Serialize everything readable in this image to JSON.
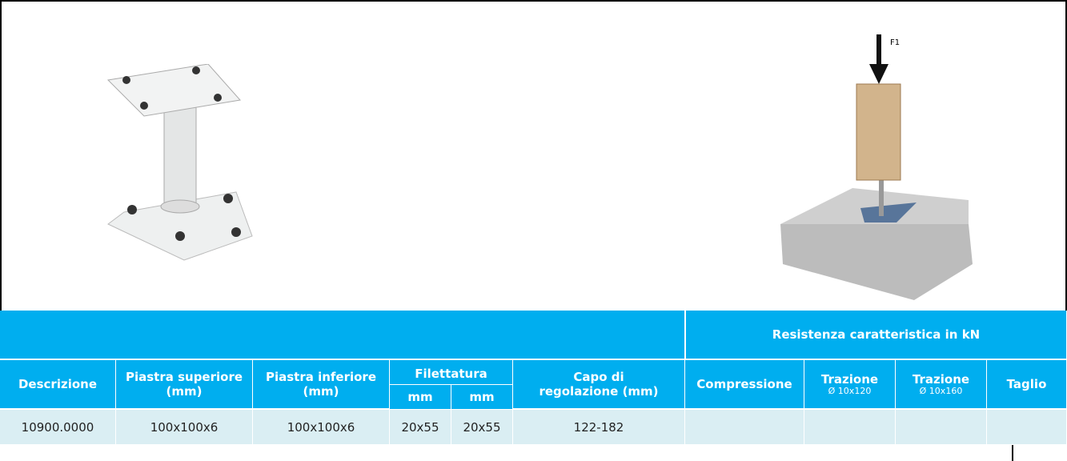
{
  "figure": {
    "force_label": "F1"
  },
  "table": {
    "group_header": "Resistenza caratteristica in kN",
    "columns": [
      {
        "lines": [
          "Descrizione"
        ]
      },
      {
        "lines": [
          "Piastra superiore",
          "(mm)"
        ]
      },
      {
        "lines": [
          "Piastra inferiore",
          "(mm)"
        ]
      },
      {
        "lines": [
          "Filettatura"
        ],
        "sub": [
          "mm",
          "mm"
        ]
      },
      {
        "lines": [
          "Capo di",
          "regolazione (mm)"
        ]
      },
      {
        "lines": [
          "Compressione"
        ]
      },
      {
        "lines": [
          "Trazione"
        ],
        "note": "Ø 10x120"
      },
      {
        "lines": [
          "Trazione"
        ],
        "note": "Ø 10x160"
      },
      {
        "lines": [
          "Taglio"
        ]
      }
    ],
    "rows": [
      [
        "10900.0000",
        "100x100x6",
        "100x100x6",
        "20x55",
        "20x55",
        "122-182"
      ]
    ]
  }
}
